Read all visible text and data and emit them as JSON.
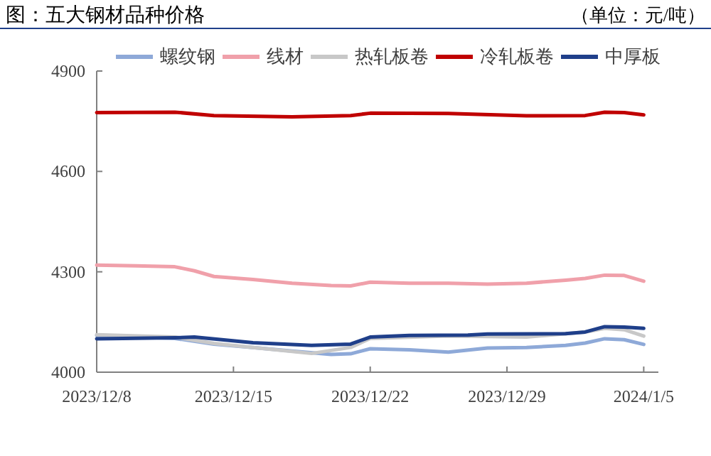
{
  "chart_data": {
    "type": "line",
    "title": "图：五大钢材品种价格",
    "subtitle": "（单位：元/吨）",
    "xlim": [
      "2023-12-08",
      "2024-01-05T18:00"
    ],
    "xticks": [
      {
        "value": "2023-12-08",
        "label": "2023/12/8"
      },
      {
        "value": "2023-12-15",
        "label": "2023/12/15"
      },
      {
        "value": "2023-12-22",
        "label": "2023/12/22"
      },
      {
        "value": "2023-12-29",
        "label": "2023/12/29"
      },
      {
        "value": "2024-01-05",
        "label": "2024/1/5"
      }
    ],
    "ylim": [
      4000,
      4900
    ],
    "yticks": [
      {
        "value": 4000,
        "label": "4000"
      },
      {
        "value": 4300,
        "label": "4300"
      },
      {
        "value": 4600,
        "label": "4600"
      },
      {
        "value": 4900,
        "label": "4900"
      }
    ],
    "legend": "top",
    "grid": false,
    "marker": "none",
    "line_style": "solid",
    "series": [
      {
        "name": "螺纹钢",
        "color": "#8ea9d8",
        "x": [
          "2023-12-08",
          "2023-12-12",
          "2023-12-14",
          "2023-12-16",
          "2023-12-18",
          "2023-12-20",
          "2023-12-21",
          "2023-12-22",
          "2023-12-24",
          "2023-12-26",
          "2023-12-28",
          "2023-12-30",
          "2024-01-01",
          "2024-01-02",
          "2024-01-03",
          "2024-01-04",
          "2024-01-05"
        ],
        "values": [
          4110,
          4101,
          4084,
          4074,
          4063,
          4053,
          4055,
          4070,
          4067,
          4060,
          4072,
          4074,
          4080,
          4087,
          4100,
          4097,
          4083
        ]
      },
      {
        "name": "线材",
        "color": "#f0a0aa",
        "x": [
          "2023-12-08",
          "2023-12-10",
          "2023-12-12",
          "2023-12-13",
          "2023-12-14",
          "2023-12-16",
          "2023-12-18",
          "2023-12-20",
          "2023-12-21",
          "2023-12-22",
          "2023-12-24",
          "2023-12-26",
          "2023-12-28",
          "2023-12-30",
          "2024-01-01",
          "2024-01-02",
          "2024-01-03",
          "2024-01-04",
          "2024-01-05"
        ],
        "values": [
          4320,
          4318,
          4315,
          4303,
          4286,
          4277,
          4266,
          4259,
          4258,
          4269,
          4266,
          4266,
          4263,
          4266,
          4275,
          4280,
          4290,
          4289,
          4272
        ]
      },
      {
        "name": "热轧板卷",
        "color": "#c8c8c8",
        "x": [
          "2023-12-08",
          "2023-12-12",
          "2023-12-14",
          "2023-12-16",
          "2023-12-19",
          "2023-12-21",
          "2023-12-22",
          "2023-12-26",
          "2023-12-30",
          "2024-01-02",
          "2024-01-03",
          "2024-01-04",
          "2024-01-05"
        ],
        "values": [
          4112,
          4105,
          4086,
          4074,
          4056,
          4074,
          4101,
          4108,
          4105,
          4120,
          4131,
          4127,
          4108
        ]
      },
      {
        "name": "冷轧板卷",
        "color": "#c00000",
        "x": [
          "2023-12-08",
          "2023-12-12",
          "2023-12-14",
          "2023-12-18",
          "2023-12-21",
          "2023-12-22",
          "2023-12-26",
          "2023-12-30",
          "2024-01-02",
          "2024-01-03",
          "2024-01-04",
          "2024-01-05"
        ],
        "values": [
          4776,
          4777,
          4767,
          4763,
          4767,
          4774,
          4773,
          4766,
          4767,
          4777,
          4776,
          4769
        ]
      },
      {
        "name": "中厚板",
        "color": "#1f3f8a",
        "x": [
          "2023-12-08",
          "2023-12-12",
          "2023-12-13",
          "2023-12-16",
          "2023-12-19",
          "2023-12-21",
          "2023-12-22",
          "2023-12-24",
          "2023-12-27",
          "2023-12-28",
          "2024-01-01",
          "2024-01-02",
          "2024-01-03",
          "2024-01-04",
          "2024-01-05"
        ],
        "values": [
          4100,
          4103,
          4105,
          4088,
          4080,
          4084,
          4105,
          4110,
          4111,
          4114,
          4115,
          4120,
          4136,
          4135,
          4131
        ]
      }
    ]
  }
}
